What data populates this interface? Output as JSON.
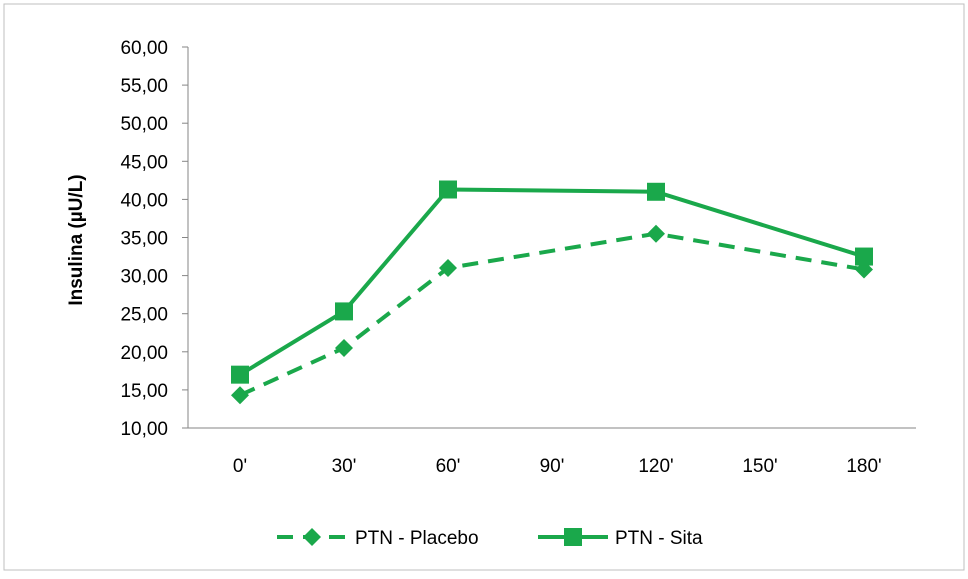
{
  "chart_data": {
    "type": "line",
    "categories": [
      "0'",
      "30'",
      "60'",
      "90'",
      "120'",
      "150'",
      "180'"
    ],
    "ylabel": "Insulina (µU/L)",
    "ylim": [
      10,
      60
    ],
    "yticks": [
      "10,00",
      "15,00",
      "20,00",
      "25,00",
      "30,00",
      "35,00",
      "40,00",
      "45,00",
      "50,00",
      "55,00",
      "60,00"
    ],
    "grid": false,
    "legend_position": "bottom",
    "series": [
      {
        "name": "PTN - Placebo",
        "points": [
          [
            0,
            14.3
          ],
          [
            1,
            20.5
          ],
          [
            2,
            31.0
          ],
          [
            4,
            35.5
          ],
          [
            6,
            30.8
          ]
        ],
        "color": "#1aa84b",
        "style": "dashed",
        "marker": "diamond"
      },
      {
        "name": "PTN - Sita",
        "points": [
          [
            0,
            17.0
          ],
          [
            1,
            25.3
          ],
          [
            2,
            41.3
          ],
          [
            4,
            41.0
          ],
          [
            6,
            32.5
          ]
        ],
        "color": "#1aa84b",
        "style": "solid",
        "marker": "square"
      }
    ]
  }
}
